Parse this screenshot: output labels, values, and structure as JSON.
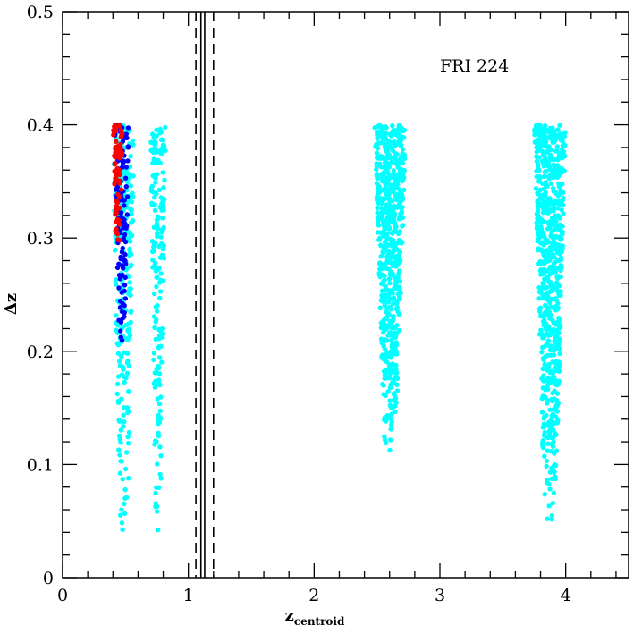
{
  "chart_data": {
    "type": "scatter",
    "title": "",
    "xlabel": "z",
    "xlabel_subscript": "centroid",
    "ylabel": "Δz",
    "xlim": [
      0,
      4.5
    ],
    "ylim": [
      0,
      0.5
    ],
    "x_ticks": [
      "0",
      "1",
      "2",
      "3",
      "4"
    ],
    "y_ticks": [
      "0",
      "0.1",
      "0.2",
      "0.3",
      "0.4",
      "0.5"
    ],
    "grid": false,
    "annotation": "FRI 224",
    "vertical_lines": [
      {
        "x": 1.06,
        "style": "dashed"
      },
      {
        "x": 1.1,
        "style": "solid"
      },
      {
        "x": 1.13,
        "style": "solid"
      },
      {
        "x": 1.2,
        "style": "dashed"
      }
    ],
    "series": [
      {
        "color": "#00ffff",
        "clusters": [
          {
            "x_min": 0.4,
            "x_max": 0.57,
            "y_min": 0.02,
            "y_max": 0.4,
            "n": 260
          },
          {
            "x_min": 0.7,
            "x_max": 0.82,
            "y_min": 0.03,
            "y_max": 0.4,
            "n": 180
          },
          {
            "x_min": 2.48,
            "x_max": 2.73,
            "y_min": 0.11,
            "y_max": 0.4,
            "n": 650
          },
          {
            "x_min": 3.75,
            "x_max": 4.0,
            "y_min": 0.04,
            "y_max": 0.4,
            "n": 700
          }
        ]
      },
      {
        "color": "#0000ff",
        "clusters": [
          {
            "x_min": 0.41,
            "x_max": 0.53,
            "y_min": 0.19,
            "y_max": 0.4,
            "n": 120
          }
        ]
      },
      {
        "color": "#ff0000",
        "clusters": [
          {
            "x_min": 0.4,
            "x_max": 0.48,
            "y_min": 0.29,
            "y_max": 0.4,
            "n": 80
          }
        ]
      }
    ]
  }
}
